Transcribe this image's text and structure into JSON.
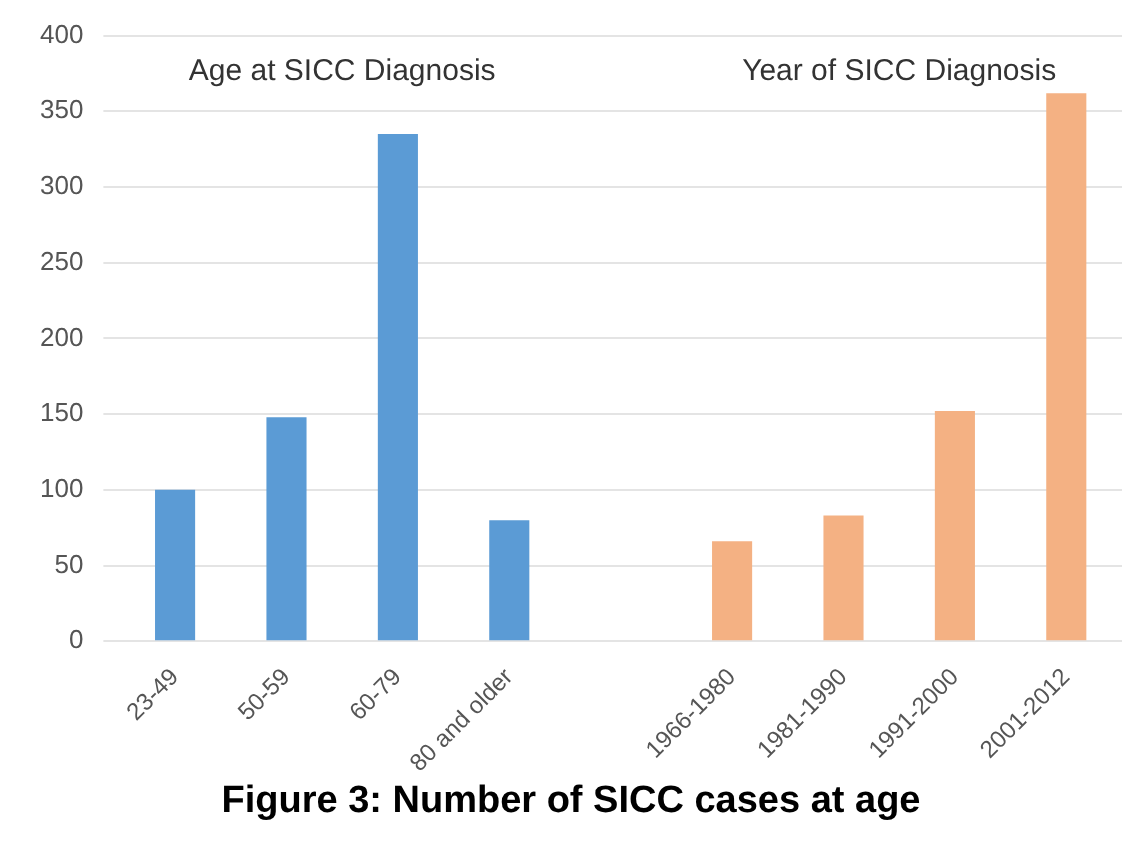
{
  "chart_data": {
    "type": "bar",
    "categories": [
      "23-49",
      "50-59",
      "60-79",
      "80 and older",
      null,
      "1966-1980",
      "1981-1990",
      "1991-2000",
      "2001-2012"
    ],
    "values": [
      100,
      148,
      335,
      80,
      null,
      66,
      83,
      152,
      362
    ],
    "colors": [
      "#5b9bd5",
      "#5b9bd5",
      "#5b9bd5",
      "#5b9bd5",
      "#5b9bd5",
      "#f4b183",
      "#f4b183",
      "#f4b183",
      "#f4b183"
    ],
    "ylim": [
      0,
      400
    ],
    "yticks": [
      0,
      50,
      100,
      150,
      200,
      250,
      300,
      350,
      400
    ],
    "grid": "y",
    "annotations": [
      "Age at SICC Diagnosis",
      "Year of SICC Diagnosis",
      "Figure 3: Number of SICC cases at age"
    ]
  }
}
